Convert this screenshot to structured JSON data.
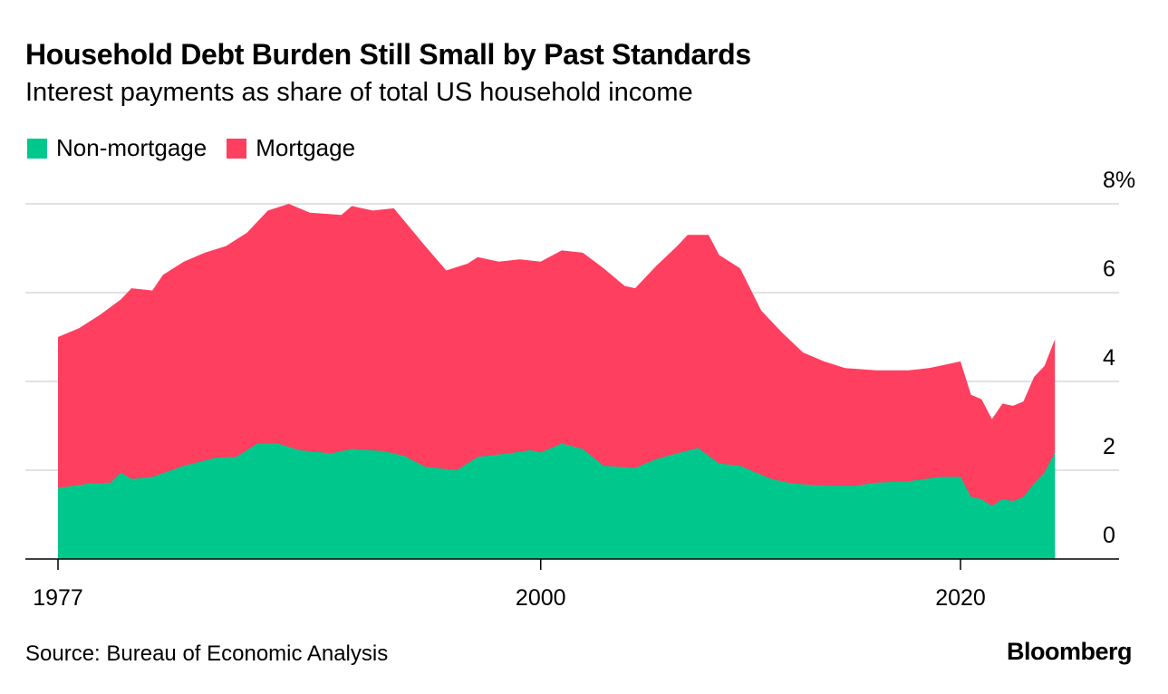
{
  "header": {
    "title": "Household Debt Burden Still Small by Past Standards",
    "subtitle": "Interest payments as share of total US household income"
  },
  "legend": [
    {
      "label": "Non-mortgage",
      "color": "#00c88c"
    },
    {
      "label": "Mortgage",
      "color": "#ff3f5f"
    }
  ],
  "footer": {
    "source": "Source: Bureau of Economic Analysis",
    "brand": "Bloomberg"
  },
  "chart_data": {
    "type": "area",
    "stacked": true,
    "title": "Household Debt Burden Still Small by Past Standards",
    "subtitle": "Interest payments as share of total US household income",
    "xlabel": "",
    "ylabel": "",
    "xlim": [
      1977,
      2026
    ],
    "ylim": [
      0,
      8
    ],
    "x_ticks": [
      1977,
      2000,
      2020
    ],
    "x_tick_labels": [
      "1977",
      "2000",
      "2020"
    ],
    "y_ticks": [
      0,
      2,
      4,
      6,
      8
    ],
    "y_tick_labels": [
      "0",
      "2",
      "4",
      "6",
      "8%"
    ],
    "grid": "horizontal",
    "legend_position": "top-left",
    "series": [
      {
        "name": "Non-mortgage",
        "color": "#00c88c",
        "points": [
          [
            1977.0,
            1.6
          ],
          [
            1978.5,
            1.7
          ],
          [
            1979.5,
            1.72
          ],
          [
            1980.0,
            1.95
          ],
          [
            1980.5,
            1.8
          ],
          [
            1981.5,
            1.85
          ],
          [
            1983.0,
            2.1
          ],
          [
            1984.5,
            2.28
          ],
          [
            1985.5,
            2.3
          ],
          [
            1986.5,
            2.6
          ],
          [
            1987.5,
            2.6
          ],
          [
            1988.5,
            2.45
          ],
          [
            1990.0,
            2.38
          ],
          [
            1991.0,
            2.48
          ],
          [
            1992.5,
            2.43
          ],
          [
            1993.5,
            2.32
          ],
          [
            1994.5,
            2.08
          ],
          [
            1996.0,
            2.0
          ],
          [
            1997.0,
            2.3
          ],
          [
            1998.5,
            2.38
          ],
          [
            1999.5,
            2.45
          ],
          [
            2000.0,
            2.4
          ],
          [
            2001.0,
            2.6
          ],
          [
            2002.0,
            2.48
          ],
          [
            2003.0,
            2.1
          ],
          [
            2004.5,
            2.05
          ],
          [
            2005.5,
            2.25
          ],
          [
            2006.5,
            2.38
          ],
          [
            2007.5,
            2.5
          ],
          [
            2008.5,
            2.15
          ],
          [
            2009.5,
            2.1
          ],
          [
            2011.0,
            1.8
          ],
          [
            2012.0,
            1.7
          ],
          [
            2013.5,
            1.65
          ],
          [
            2015.0,
            1.65
          ],
          [
            2016.0,
            1.72
          ],
          [
            2017.5,
            1.75
          ],
          [
            2019.0,
            1.85
          ],
          [
            2020.0,
            1.85
          ],
          [
            2020.5,
            1.4
          ],
          [
            2021.0,
            1.35
          ],
          [
            2021.5,
            1.2
          ],
          [
            2022.0,
            1.35
          ],
          [
            2022.5,
            1.3
          ],
          [
            2023.0,
            1.4
          ],
          [
            2023.5,
            1.7
          ],
          [
            2024.0,
            1.95
          ],
          [
            2024.5,
            2.4
          ]
        ]
      },
      {
        "name": "Mortgage",
        "color": "#ff3f5f",
        "total_points": [
          [
            1977.0,
            5.0
          ],
          [
            1978.0,
            5.2
          ],
          [
            1979.0,
            5.5
          ],
          [
            1980.0,
            5.85
          ],
          [
            1980.5,
            6.1
          ],
          [
            1981.5,
            6.05
          ],
          [
            1982.0,
            6.4
          ],
          [
            1983.0,
            6.7
          ],
          [
            1984.0,
            6.9
          ],
          [
            1985.0,
            7.05
          ],
          [
            1986.0,
            7.35
          ],
          [
            1987.0,
            7.85
          ],
          [
            1988.0,
            8.0
          ],
          [
            1989.0,
            7.8
          ],
          [
            1990.5,
            7.75
          ],
          [
            1991.0,
            7.95
          ],
          [
            1992.0,
            7.85
          ],
          [
            1993.0,
            7.9
          ],
          [
            1994.5,
            7.05
          ],
          [
            1995.5,
            6.5
          ],
          [
            1996.5,
            6.65
          ],
          [
            1997.0,
            6.8
          ],
          [
            1998.0,
            6.7
          ],
          [
            1999.0,
            6.75
          ],
          [
            2000.0,
            6.7
          ],
          [
            2001.0,
            6.95
          ],
          [
            2002.0,
            6.9
          ],
          [
            2003.0,
            6.55
          ],
          [
            2004.0,
            6.15
          ],
          [
            2004.5,
            6.1
          ],
          [
            2005.5,
            6.6
          ],
          [
            2006.5,
            7.05
          ],
          [
            2007.0,
            7.3
          ],
          [
            2008.0,
            7.3
          ],
          [
            2008.5,
            6.85
          ],
          [
            2009.5,
            6.55
          ],
          [
            2010.5,
            5.6
          ],
          [
            2011.5,
            5.1
          ],
          [
            2012.5,
            4.65
          ],
          [
            2013.5,
            4.45
          ],
          [
            2014.5,
            4.3
          ],
          [
            2016.0,
            4.25
          ],
          [
            2017.5,
            4.25
          ],
          [
            2018.5,
            4.3
          ],
          [
            2019.5,
            4.4
          ],
          [
            2020.0,
            4.45
          ],
          [
            2020.5,
            3.7
          ],
          [
            2021.0,
            3.6
          ],
          [
            2021.5,
            3.15
          ],
          [
            2022.0,
            3.5
          ],
          [
            2022.5,
            3.45
          ],
          [
            2023.0,
            3.55
          ],
          [
            2023.5,
            4.1
          ],
          [
            2024.0,
            4.35
          ],
          [
            2024.5,
            4.95
          ]
        ]
      }
    ]
  }
}
